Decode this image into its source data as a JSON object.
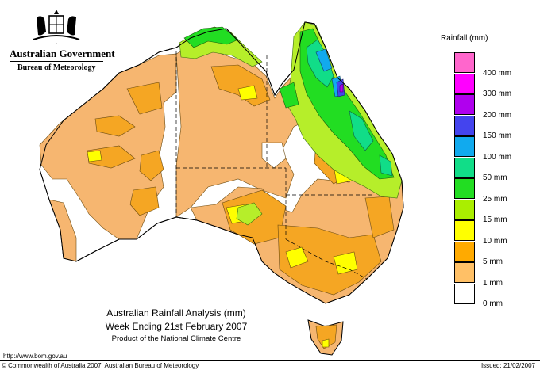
{
  "header": {
    "government": "Australian Government",
    "bureau": "Bureau of Meteorology",
    "crest_icon": "coat-of-arms-icon"
  },
  "legend": {
    "title": "Rainfall (mm)",
    "items": [
      {
        "label": "",
        "color": "#ff66cc"
      },
      {
        "label": "400 mm",
        "color": "#ff00ff"
      },
      {
        "label": "300 mm",
        "color": "#b000ee"
      },
      {
        "label": "200 mm",
        "color": "#4444ee"
      },
      {
        "label": "150 mm",
        "color": "#11aaee"
      },
      {
        "label": "100 mm",
        "color": "#11dd88"
      },
      {
        "label": "50 mm",
        "color": "#22dd22"
      },
      {
        "label": "25 mm",
        "color": "#aaee00"
      },
      {
        "label": "15 mm",
        "color": "#ffff00"
      },
      {
        "label": "10 mm",
        "color": "#ffaa00"
      },
      {
        "label": "5 mm",
        "color": "#ffc066"
      },
      {
        "label": "1 mm",
        "color": "#ffffff"
      },
      {
        "label": "0 mm",
        "color": ""
      }
    ]
  },
  "map": {
    "colors": {
      "dry": "#f6b670",
      "rain_10": "#f5a623",
      "rain_15": "#ffff00",
      "rain_25": "#b6ee2a",
      "rain_50": "#22dd22",
      "rain_100": "#11dd88",
      "rain_150": "#11aaee",
      "rain_200": "#4444ee",
      "rain_300": "#b000ee",
      "land": "#ffffff"
    }
  },
  "title": {
    "line1": "Australian Rainfall Analysis (mm)",
    "line2": "Week Ending 21st February 2007",
    "line3": "Product of the National Climate Centre"
  },
  "footer": {
    "url": "http://www.bom.gov.au",
    "copyright": "© Commonwealth of Australia 2007, Australian Bureau of Meteorology",
    "issued": "Issued: 21/02/2007"
  }
}
